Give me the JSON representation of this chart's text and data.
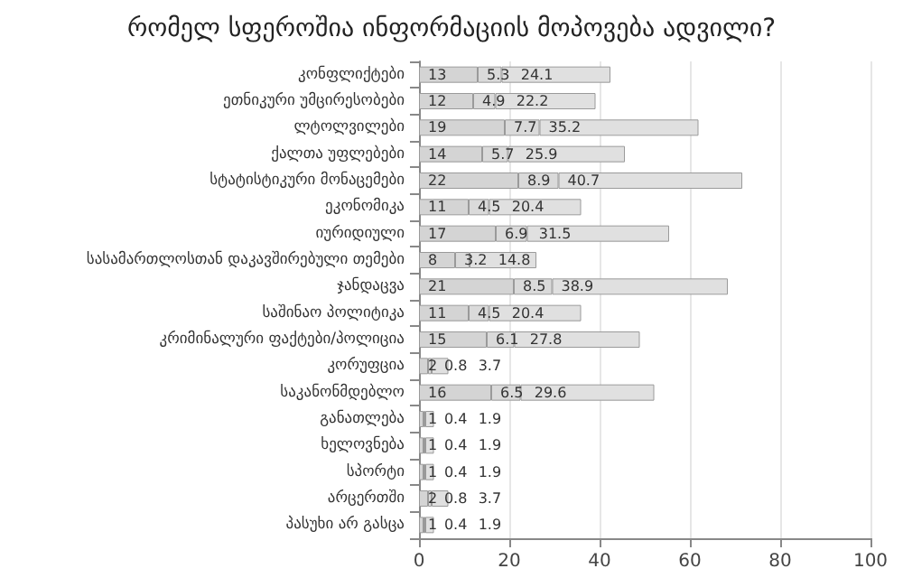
{
  "chart_data": {
    "type": "bar",
    "title": "რომელ სფეროშია ინფორმაციის მოპოვება ადვილი?",
    "orientation": "horizontal",
    "stacked": true,
    "data_labels": true,
    "grid": "x",
    "categories": [
      "კონფლიქტები",
      "ეთნიკური უმცირესობები",
      "ლტოლვილები",
      "ქალთა უფლებები",
      "სტატისტიკური მონაცემები",
      "ეკონომიკა",
      "იურიდიული",
      "სასამართლოსთან დაკავშირებული თემები",
      "ჯანდაცვა",
      "საშინაო პოლიტიკა",
      "კრიმინალური ფაქტები/პოლიცია",
      "კორუფცია",
      "საკანონმდებლო",
      "განათლება",
      "ხელოვნება",
      "სპორტი",
      "არცერთში",
      "პასუხი არ გასცა"
    ],
    "series": [
      {
        "color": "#d4d4d4",
        "values": [
          13,
          12,
          19,
          14,
          22,
          11,
          17,
          8,
          21,
          11,
          15,
          2,
          16,
          1,
          1,
          1,
          2,
          1
        ]
      },
      {
        "color": "#dadada",
        "values": [
          5.3,
          4.9,
          7.7,
          5.7,
          8.9,
          4.5,
          6.9,
          3.2,
          8.5,
          4.5,
          6.1,
          0.8,
          6.5,
          0.4,
          0.4,
          0.4,
          0.8,
          0.4
        ]
      },
      {
        "color": "#e0e0e0",
        "values": [
          24.1,
          22.2,
          35.2,
          25.9,
          40.7,
          20.4,
          31.5,
          14.8,
          38.9,
          20.4,
          27.8,
          3.7,
          29.6,
          1.9,
          1.9,
          1.9,
          3.7,
          1.9
        ]
      }
    ],
    "xlim": [
      0,
      100
    ],
    "xticks": [
      0,
      20,
      40,
      60,
      80,
      100
    ]
  }
}
